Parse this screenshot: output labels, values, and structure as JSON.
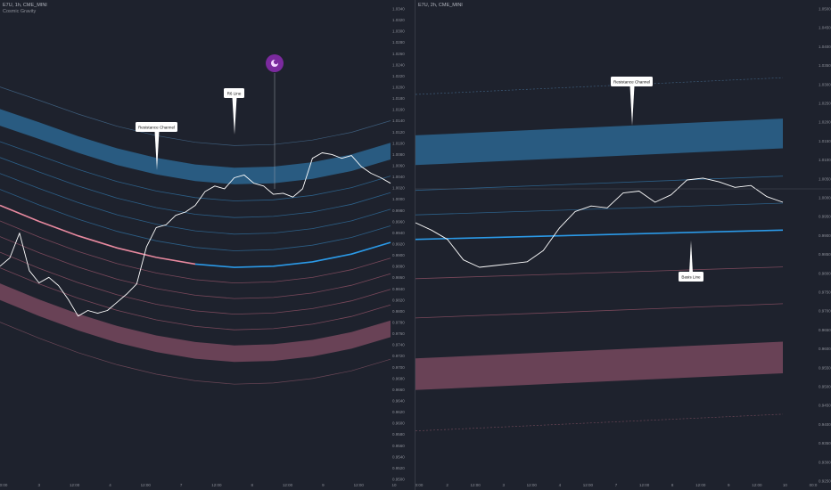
{
  "colors": {
    "background": "#1e222d",
    "resistance_fill": "#2a5f86",
    "support_fill": "#6e4559",
    "basis_blue": "#2b9ae8",
    "basis_pink": "#e8899f",
    "price_line": "#ffffff",
    "grid_text": "#8b8e97",
    "marker": "#7b2a9e"
  },
  "left": {
    "header": {
      "symbol_line": "E7U, 1h, CME_MINI",
      "indicator": "Cosmic Gravity"
    },
    "callouts": {
      "resistance": "Resistance Channel",
      "r6": "R6 Line"
    },
    "marker_icon": "moon-icon",
    "chart_data": {
      "type": "line",
      "x_ticks": [
        "0:00",
        "3",
        "12:00",
        "4",
        "12:00",
        "7",
        "12:00",
        "8",
        "12:00",
        "9",
        "12:00",
        "10"
      ],
      "y_ticks": [
        "1.0340",
        "1.0320",
        "1.0300",
        "1.0280",
        "1.0260",
        "1.0240",
        "1.0220",
        "1.0200",
        "1.0180",
        "1.0160",
        "1.0140",
        "1.0120",
        "1.0100",
        "1.0080",
        "1.0060",
        "1.0040",
        "1.0020",
        "1.0000",
        "0.9980",
        "0.9960",
        "0.9940",
        "0.9920",
        "0.9900",
        "0.9880",
        "0.9860",
        "0.9840",
        "0.9820",
        "0.9800",
        "0.9780",
        "0.9760",
        "0.9740",
        "0.9720",
        "0.9700",
        "0.9680",
        "0.9660",
        "0.9640",
        "0.9620",
        "0.9600",
        "0.9580",
        "0.9560",
        "0.9540",
        "0.9520",
        "0.9500"
      ],
      "ylim": [
        0.9495,
        1.0345
      ],
      "series": [
        {
          "role": "price",
          "values": [
            0.988,
            0.9895,
            0.994,
            0.9872,
            0.985,
            0.986,
            0.9845,
            0.982,
            0.979,
            0.98,
            0.9795,
            0.98,
            0.9815,
            0.983,
            0.9848,
            0.9915,
            0.995,
            0.9955,
            0.9972,
            0.9978,
            0.999,
            1.0015,
            1.0025,
            1.002,
            1.004,
            1.0045,
            1.003,
            1.0025,
            1.001,
            1.0012,
            1.0005,
            1.002,
            1.0075,
            1.0085,
            1.0082,
            1.0075,
            1.008,
            1.006,
            1.0048,
            1.004,
            1.003
          ]
        },
        {
          "role": "basis",
          "values": [
            0.999,
            0.9961,
            0.9935,
            0.9913,
            0.9896,
            0.9884,
            0.9878,
            0.988,
            0.9888,
            0.9902,
            0.9923
          ]
        },
        {
          "role": "resistance-channel-top",
          "values": [
            1.0164,
            1.014,
            1.0115,
            1.0093,
            1.0076,
            1.0064,
            1.0058,
            1.006,
            1.0068,
            1.0082,
            1.0103
          ]
        },
        {
          "role": "resistance-channel-bottom",
          "values": [
            1.0134,
            1.011,
            1.0085,
            1.0063,
            1.0046,
            1.0034,
            1.0028,
            1.003,
            1.0038,
            1.0052,
            1.0073
          ]
        },
        {
          "role": "support-channel-top",
          "values": [
            0.9849,
            0.982,
            0.9794,
            0.9772,
            0.9755,
            0.9743,
            0.9737,
            0.9739,
            0.9747,
            0.9761,
            0.9782
          ]
        },
        {
          "role": "support-channel-bottom",
          "values": [
            0.9819,
            0.979,
            0.9764,
            0.9742,
            0.9725,
            0.9713,
            0.9707,
            0.9709,
            0.9717,
            0.9731,
            0.9752
          ]
        }
      ],
      "grid": false
    }
  },
  "right": {
    "header": {
      "symbol_line": "E7U, 2h, CME_MINI"
    },
    "callouts": {
      "resistance": "Resistance Channel",
      "basis": "Basis Line"
    },
    "chart_data": {
      "type": "line",
      "x_ticks": [
        "0:00",
        "2",
        "12:00",
        "3",
        "12:00",
        "4",
        "12:00",
        "7",
        "12:00",
        "8",
        "12:00",
        "9",
        "12:00",
        "10",
        "00:0"
      ],
      "y_ticks": [
        "1.0500",
        "1.0450",
        "1.0400",
        "1.0350",
        "1.0300",
        "1.0250",
        "1.0200",
        "1.0150",
        "1.0100",
        "1.0050",
        "1.0000",
        "0.9950",
        "0.9900",
        "0.9850",
        "0.9800",
        "0.9750",
        "0.9700",
        "0.9650",
        "0.9600",
        "0.9550",
        "0.9500",
        "0.9450",
        "0.9400",
        "0.9350",
        "0.9300",
        "0.9250"
      ],
      "ylim": [
        0.925,
        1.052
      ],
      "series": [
        {
          "role": "price",
          "values": [
            0.9945,
            0.9925,
            0.99,
            0.9845,
            0.9825,
            0.983,
            0.9835,
            0.984,
            0.987,
            0.993,
            0.9975,
            0.999,
            0.9985,
            1.0025,
            1.003,
            1.0,
            1.002,
            1.006,
            1.0065,
            1.0055,
            1.004,
            1.0045,
            1.0015,
            1.0
          ]
        },
        {
          "role": "basis",
          "values": [
            0.99,
            0.9925
          ]
        },
        {
          "role": "resistance-channel-top",
          "values": [
            1.018,
            1.0225
          ]
        },
        {
          "role": "resistance-channel-bottom",
          "values": [
            1.01,
            1.0145
          ]
        },
        {
          "role": "support-channel-top",
          "values": [
            0.958,
            0.9625
          ]
        },
        {
          "role": "support-channel-bottom",
          "values": [
            0.9495,
            0.954
          ]
        }
      ],
      "grid": false
    }
  }
}
